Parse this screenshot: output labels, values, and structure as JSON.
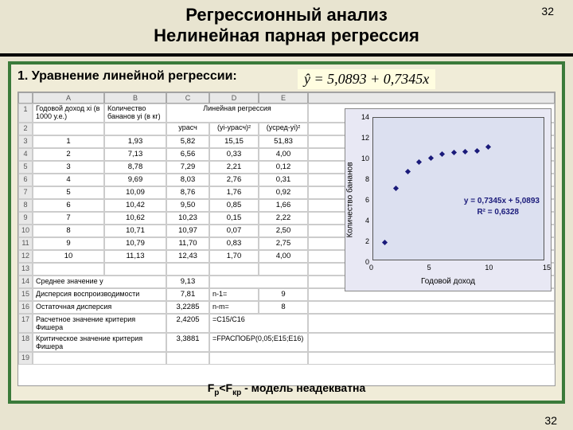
{
  "page_number": "32",
  "title_line1": "Регрессионный анализ",
  "title_line2": "Нелинейная парная регрессия",
  "section_heading": "1. Уравнение линейной регрессии:",
  "equation": "ŷ = 5,0893 + 0,7345x",
  "spreadsheet": {
    "col_letters": [
      "",
      "A",
      "B",
      "C",
      "D",
      "E",
      ""
    ],
    "header_row": {
      "n": "1",
      "A": "Годовой доход xi (в 1000 у.е.)",
      "B": "Количество бананов yi (в кг)",
      "group": "Линейная регрессия"
    },
    "subheader_row": {
      "n": "2",
      "C": "yрасч",
      "D": "(yi-yрасч)²",
      "E": "(yсред-yi)²"
    },
    "data_rows": [
      {
        "n": "3",
        "A": "1",
        "B": "1,93",
        "C": "5,82",
        "D": "15,15",
        "E": "51,83"
      },
      {
        "n": "4",
        "A": "2",
        "B": "7,13",
        "C": "6,56",
        "D": "0,33",
        "E": "4,00"
      },
      {
        "n": "5",
        "A": "3",
        "B": "8,78",
        "C": "7,29",
        "D": "2,21",
        "E": "0,12"
      },
      {
        "n": "6",
        "A": "4",
        "B": "9,69",
        "C": "8,03",
        "D": "2,76",
        "E": "0,31"
      },
      {
        "n": "7",
        "A": "5",
        "B": "10,09",
        "C": "8,76",
        "D": "1,76",
        "E": "0,92"
      },
      {
        "n": "8",
        "A": "6",
        "B": "10,42",
        "C": "9,50",
        "D": "0,85",
        "E": "1,66"
      },
      {
        "n": "9",
        "A": "7",
        "B": "10,62",
        "C": "10,23",
        "D": "0,15",
        "E": "2,22"
      },
      {
        "n": "10",
        "A": "8",
        "B": "10,71",
        "C": "10,97",
        "D": "0,07",
        "E": "2,50"
      },
      {
        "n": "11",
        "A": "9",
        "B": "10,79",
        "C": "11,70",
        "D": "0,83",
        "E": "2,75"
      },
      {
        "n": "12",
        "A": "10",
        "B": "11,13",
        "C": "12,43",
        "D": "1,70",
        "E": "4,00"
      },
      {
        "n": "13",
        "A": "",
        "B": "",
        "C": "",
        "D": "",
        "E": ""
      }
    ],
    "summary_rows": [
      {
        "n": "14",
        "label": "Среднее значение y",
        "C": "9,13",
        "D": "",
        "E": ""
      },
      {
        "n": "15",
        "label": "Дисперсия воспроизводимости",
        "C": "7,81",
        "D": "n-1=",
        "E": "9"
      },
      {
        "n": "16",
        "label": "Остаточная дисперсия",
        "C": "3,2285",
        "D": "n-m=",
        "E": "8"
      },
      {
        "n": "17",
        "label": "Расчетное значение критерия Фишера",
        "C": "2,4205",
        "D": "=C15/C16",
        "E": ""
      },
      {
        "n": "18",
        "label": "Критическое значение критерия Фишера",
        "C": "3,3881",
        "D": "=FРАСПОБР(0,05;E15;E16)",
        "E": ""
      },
      {
        "n": "19",
        "label": "",
        "C": "",
        "D": "",
        "E": ""
      }
    ]
  },
  "chart": {
    "type": "scatter",
    "xlabel": "Годовой доход",
    "ylabel": "Количество бананов",
    "xlim": [
      0,
      15
    ],
    "ylim": [
      0,
      14
    ],
    "xticks": [
      0,
      5,
      10,
      15
    ],
    "yticks": [
      0,
      2,
      4,
      6,
      8,
      10,
      12,
      14
    ],
    "points_x": [
      1,
      2,
      3,
      4,
      5,
      6,
      7,
      8,
      9,
      10
    ],
    "points_y": [
      1.93,
      7.13,
      8.78,
      9.69,
      10.09,
      10.42,
      10.62,
      10.71,
      10.79,
      11.13
    ],
    "eq_text": "y = 0,7345x + 5,0893",
    "r2_text": "R² = 0,6328",
    "marker_color": "#1a1a7a",
    "bg_color": "#dce0f0",
    "plot_fontsize": 10
  },
  "footer_formula": "Fр<Fкр - модель неадекватна"
}
